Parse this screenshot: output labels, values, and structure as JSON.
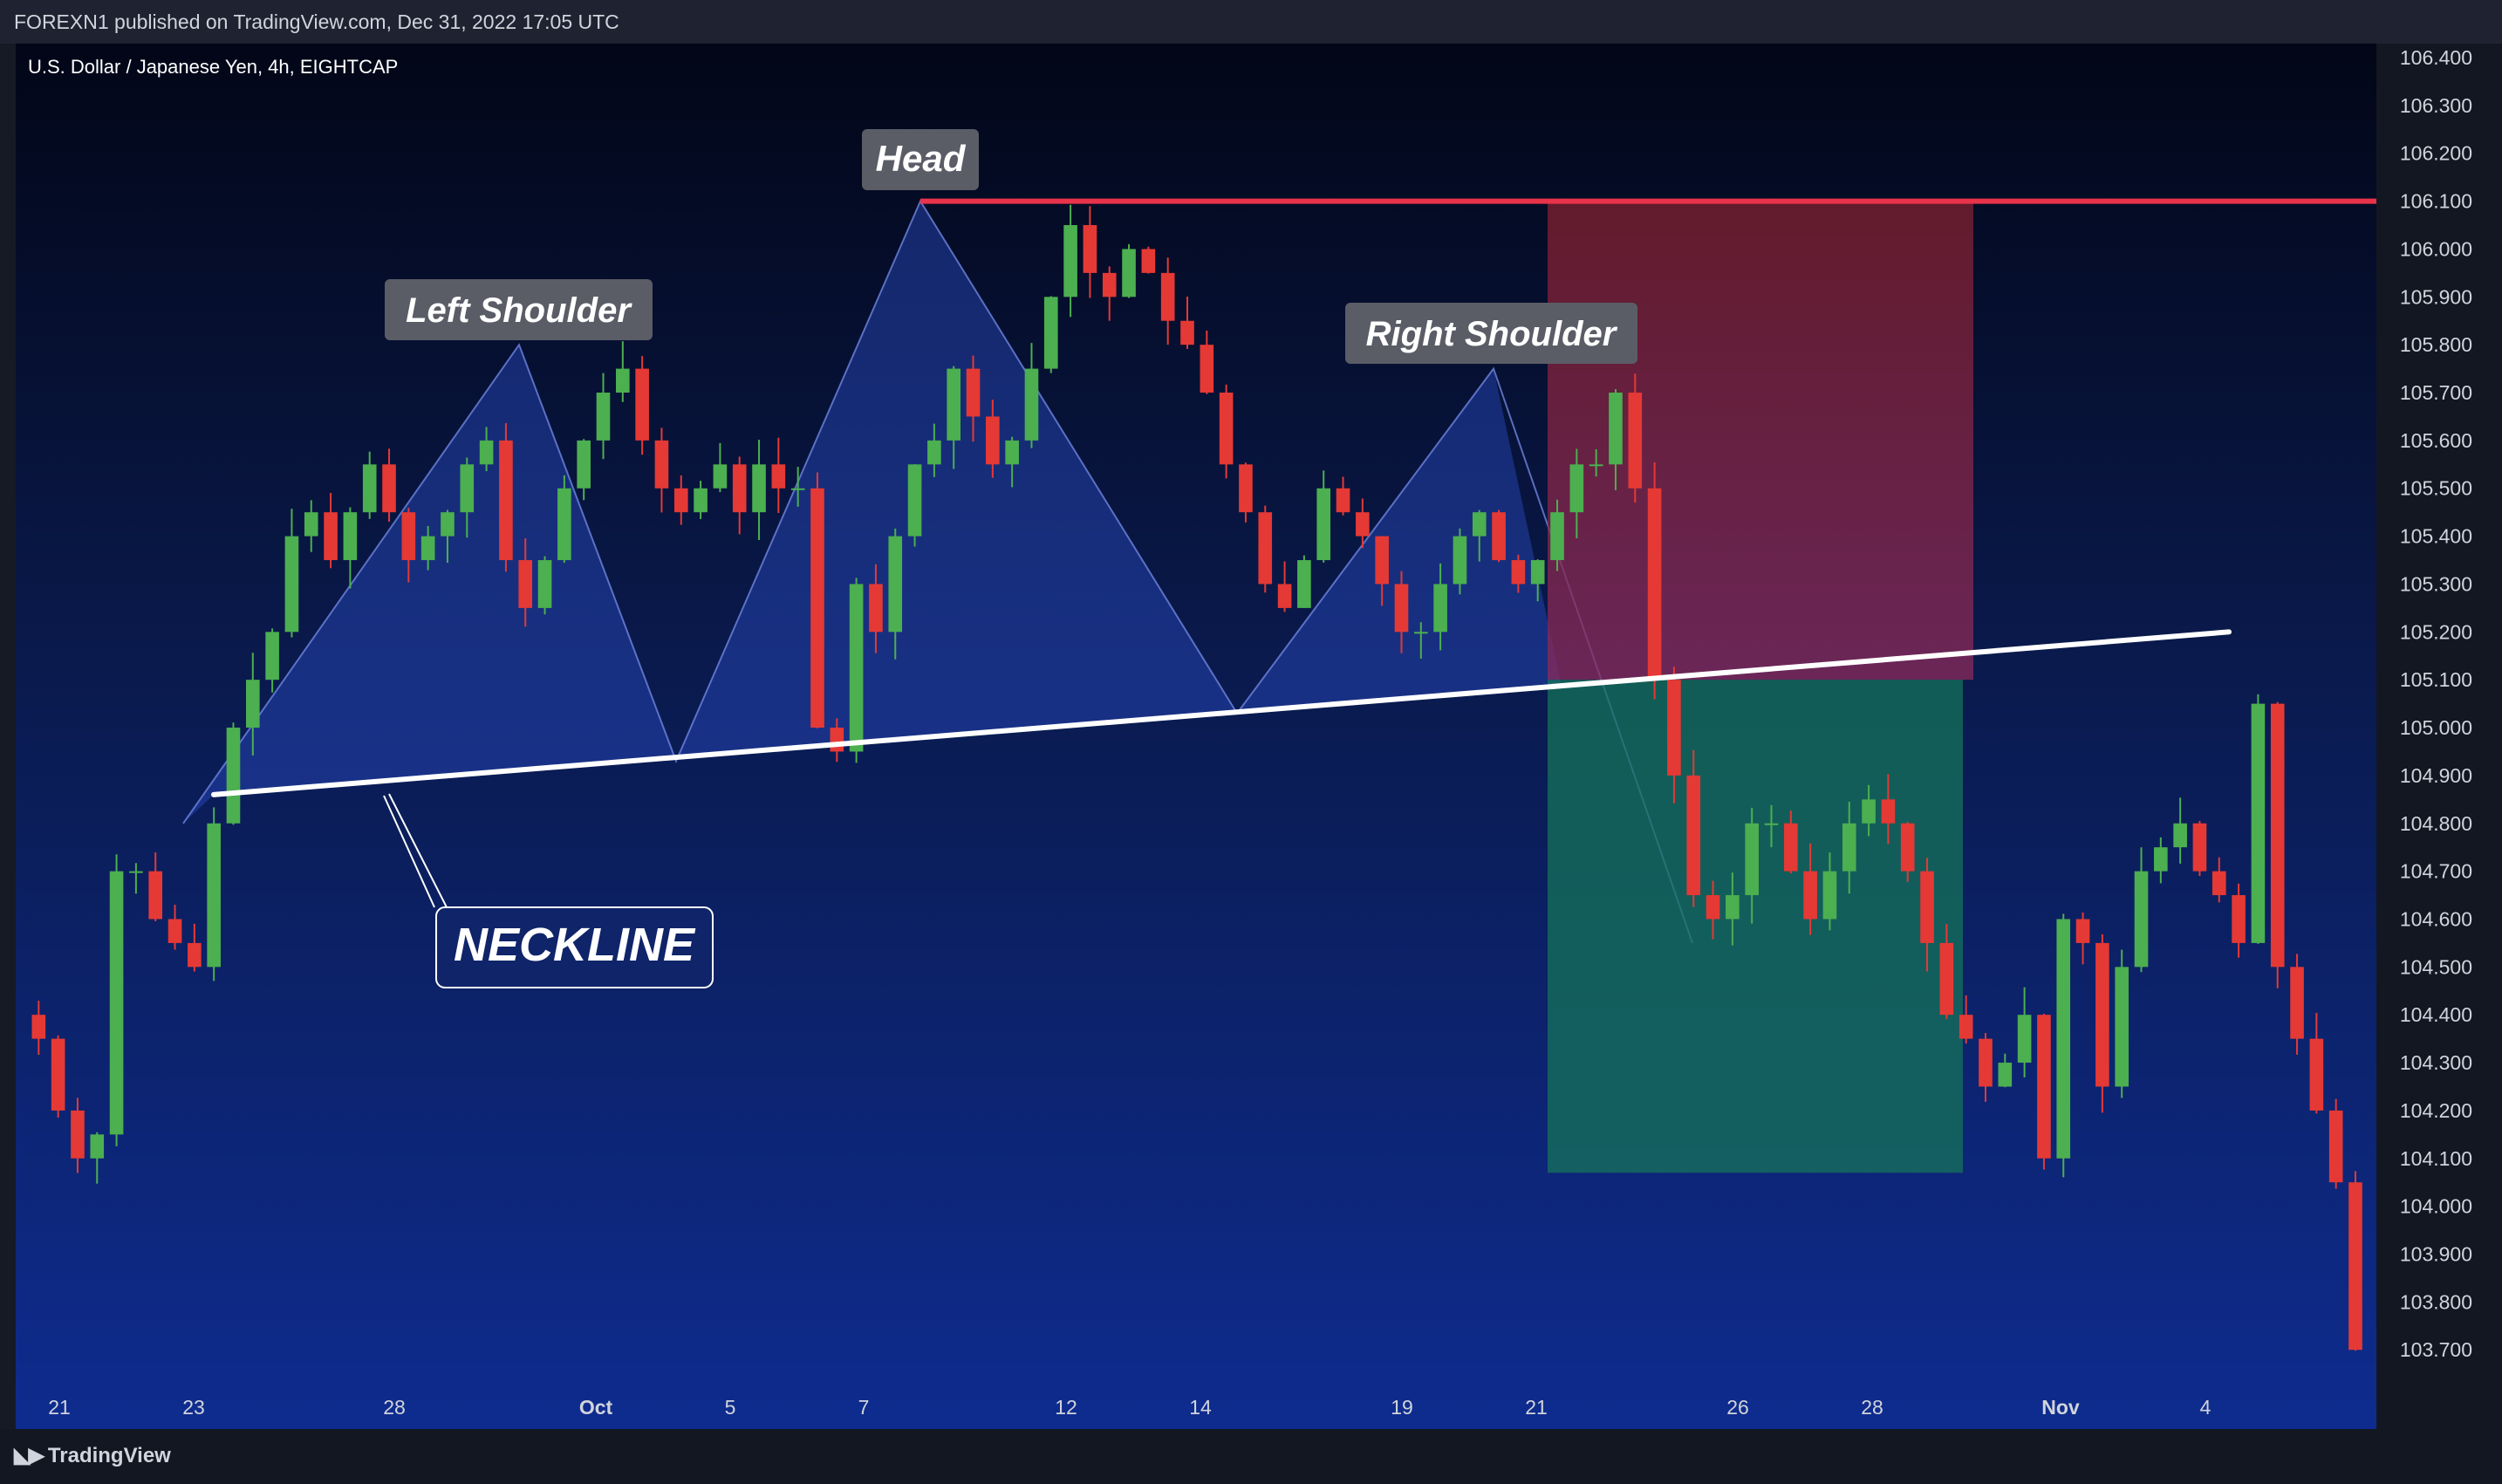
{
  "header": {
    "published": "FOREXN1 published on TradingView.com, Dec 31, 2022 17:05 UTC"
  },
  "symbol": "U.S. Dollar / Japanese Yen, 4h, EIGHTCAP",
  "footer": {
    "brand": "TradingView",
    "brand_icon": "tradingview-logo-icon"
  },
  "colors": {
    "bull": "#4caf50",
    "bear": "#e53935",
    "stop_zone": "#8b2a3f",
    "target_zone": "#16735a",
    "pattern_fill": "#2b4cc4",
    "resistance": "#e8334a"
  },
  "annotations": {
    "head": "Head",
    "left_shoulder": "Left Shoulder",
    "right_shoulder": "Right Shoulder",
    "neckline": "NECKLINE"
  },
  "chart_data": {
    "type": "candlestick",
    "title": "U.S. Dollar / Japanese Yen, 4h, EIGHTCAP",
    "y_ticks": [
      "106.400",
      "106.300",
      "106.200",
      "106.100",
      "106.000",
      "105.900",
      "105.800",
      "105.700",
      "105.600",
      "105.500",
      "105.400",
      "105.300",
      "105.200",
      "105.100",
      "105.000",
      "104.900",
      "104.800",
      "104.700",
      "104.600",
      "104.500",
      "104.400",
      "104.300",
      "104.200",
      "104.100",
      "104.000",
      "103.900",
      "103.800",
      "103.700"
    ],
    "x_ticks": [
      {
        "label": "21",
        "bold": false
      },
      {
        "label": "23",
        "bold": false
      },
      {
        "label": "28",
        "bold": false
      },
      {
        "label": "Oct",
        "bold": true
      },
      {
        "label": "5",
        "bold": false
      },
      {
        "label": "7",
        "bold": false
      },
      {
        "label": "12",
        "bold": false
      },
      {
        "label": "14",
        "bold": false
      },
      {
        "label": "19",
        "bold": false
      },
      {
        "label": "21",
        "bold": false
      },
      {
        "label": "26",
        "bold": false
      },
      {
        "label": "28",
        "bold": false
      },
      {
        "label": "Nov",
        "bold": true
      },
      {
        "label": "4",
        "bold": false
      }
    ],
    "ylim": [
      103.6,
      106.43
    ],
    "close_path": [
      104.4,
      104.35,
      104.2,
      104.1,
      104.15,
      104.7,
      104.7,
      104.6,
      104.55,
      104.5,
      104.8,
      105.0,
      105.1,
      105.2,
      105.4,
      105.45,
      105.35,
      105.45,
      105.55,
      105.45,
      105.35,
      105.4,
      105.45,
      105.55,
      105.6,
      105.35,
      105.25,
      105.35,
      105.5,
      105.6,
      105.7,
      105.75,
      105.6,
      105.5,
      105.45,
      105.5,
      105.55,
      105.45,
      105.55,
      105.5,
      105.5,
      105.0,
      104.95,
      105.3,
      105.2,
      105.4,
      105.55,
      105.6,
      105.75,
      105.65,
      105.55,
      105.6,
      105.75,
      105.9,
      106.05,
      105.95,
      105.9,
      106.0,
      105.95,
      105.85,
      105.8,
      105.7,
      105.55,
      105.45,
      105.3,
      105.25,
      105.35,
      105.5,
      105.45,
      105.4,
      105.3,
      105.2,
      105.2,
      105.3,
      105.4,
      105.45,
      105.35,
      105.3,
      105.35,
      105.45,
      105.55,
      105.55,
      105.7,
      105.5,
      105.1,
      104.9,
      104.65,
      104.6,
      104.65,
      104.8,
      104.8,
      104.7,
      104.6,
      104.7,
      104.8,
      104.85,
      104.8,
      104.7,
      104.55,
      104.4,
      104.35,
      104.25,
      104.3,
      104.4,
      104.1,
      104.6,
      104.55,
      104.25,
      104.5,
      104.7,
      104.75,
      104.8,
      104.7,
      104.65,
      104.55,
      105.05,
      104.5,
      104.35,
      104.2,
      104.05,
      103.7
    ],
    "head": 106.1,
    "left_shoulder": 105.8,
    "right_shoulder": 105.75,
    "neckline_start": 104.86,
    "neckline_end": 105.2,
    "resistance": 106.1,
    "stop_zone": [
      105.1,
      106.1
    ],
    "target_zone": [
      104.07,
      105.1
    ]
  }
}
